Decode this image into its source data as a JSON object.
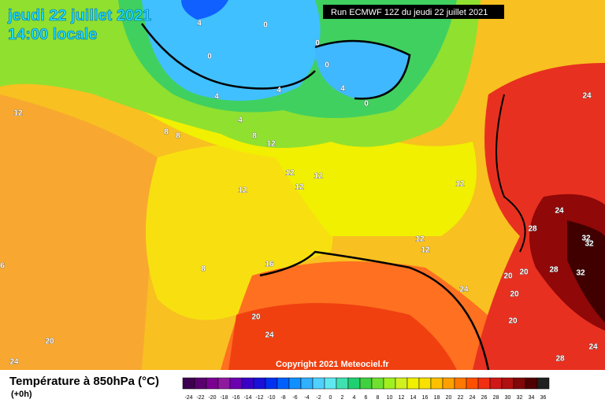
{
  "header": {
    "date": "jeudi 22 juillet 2021",
    "time": "14:00 locale",
    "run": "Run ECMWF 12Z du jeudi 22 juillet 2021"
  },
  "map": {
    "copyright": "Copyright 2021 Meteociel.fr",
    "contour_labels": [
      4,
      0,
      0,
      0,
      0,
      4,
      0,
      4,
      4,
      4,
      8,
      8,
      8,
      12,
      12,
      12,
      12,
      12,
      12,
      12,
      8,
      16,
      12,
      12,
      6,
      20,
      24,
      20,
      24,
      24,
      24,
      28,
      32,
      32,
      28,
      32,
      20,
      20,
      24,
      20,
      20,
      24,
      28
    ]
  },
  "legend": {
    "title": "Température à 850hPa (°C)",
    "subtitle": "(+0h)",
    "ticks": [
      -24,
      -22,
      -20,
      -18,
      -16,
      -14,
      -12,
      -10,
      -8,
      -6,
      -4,
      -2,
      0,
      2,
      4,
      6,
      8,
      10,
      12,
      14,
      16,
      18,
      20,
      22,
      24,
      26,
      28,
      30,
      32,
      34,
      36
    ],
    "colors": [
      "#3d0050",
      "#5a006e",
      "#7a0090",
      "#8f1aa0",
      "#6d00b0",
      "#3a00c8",
      "#1a10d8",
      "#0030f0",
      "#0060ff",
      "#1090ff",
      "#30b0ff",
      "#50d0ff",
      "#60e8f0",
      "#40e0b0",
      "#20d070",
      "#40d040",
      "#70e030",
      "#a0f020",
      "#d0f020",
      "#f0f000",
      "#f8e000",
      "#ffc000",
      "#ffa000",
      "#ff7800",
      "#ff5000",
      "#f03010",
      "#d01818",
      "#b01010",
      "#800808",
      "#500000",
      "#202020"
    ]
  }
}
